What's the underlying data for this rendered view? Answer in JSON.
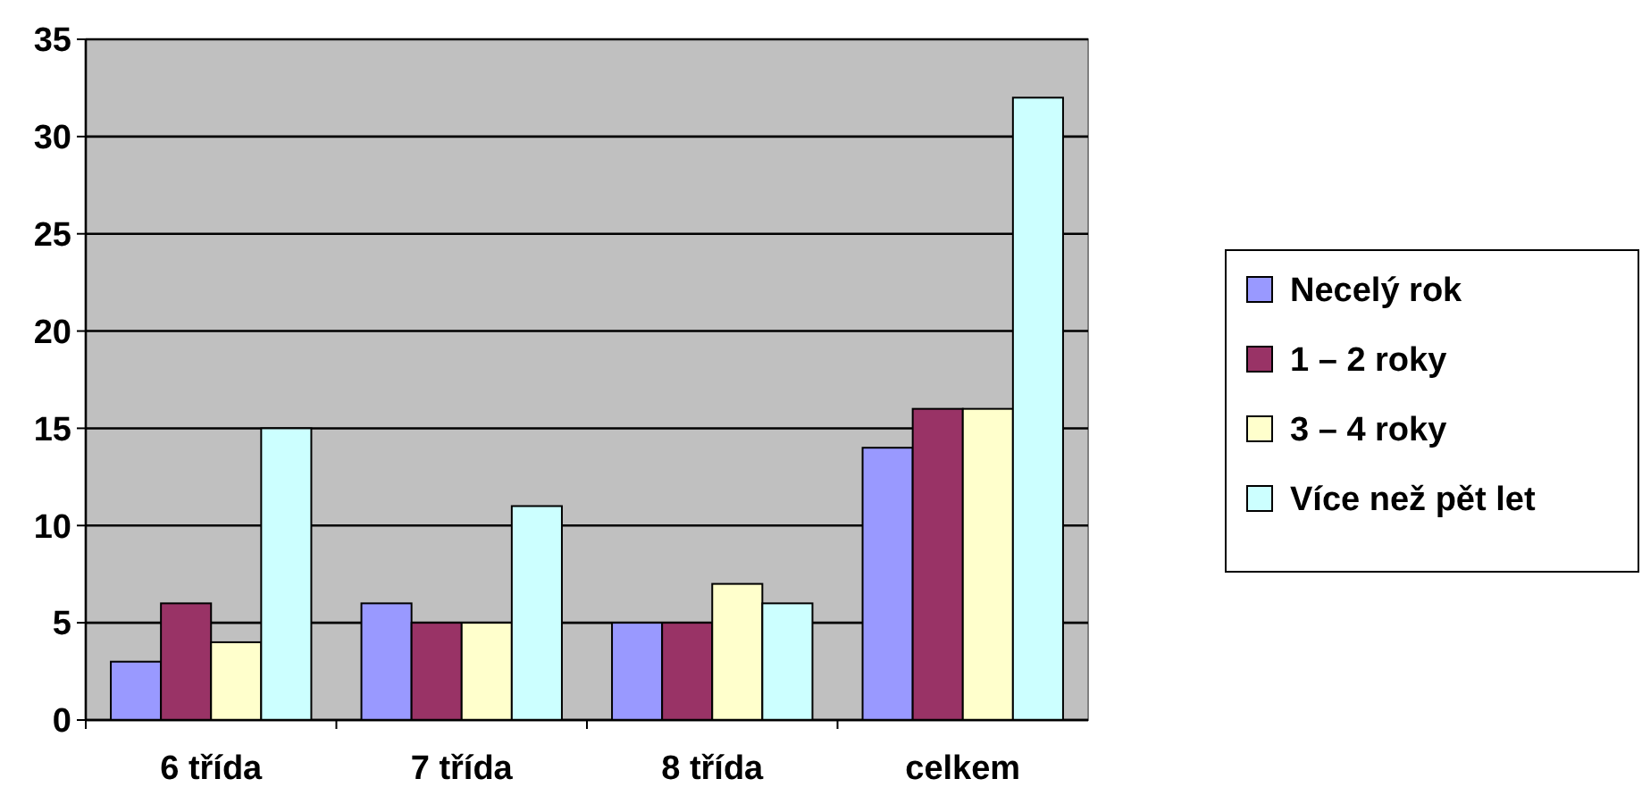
{
  "chart_data": {
    "type": "bar",
    "categories": [
      "6 třída",
      "7 třída",
      "8 třída",
      "celkem"
    ],
    "series": [
      {
        "name": "Necelý rok",
        "color": "#9999ff",
        "values": [
          3,
          6,
          5,
          14
        ]
      },
      {
        "name": "1 – 2 roky",
        "color": "#993366",
        "values": [
          6,
          5,
          5,
          16
        ]
      },
      {
        "name": "3 – 4 roky",
        "color": "#ffffcc",
        "values": [
          4,
          5,
          7,
          16
        ]
      },
      {
        "name": "Více než pět let",
        "color": "#ccffff",
        "values": [
          15,
          11,
          6,
          32
        ]
      }
    ],
    "ylim": [
      0,
      35
    ],
    "yticks": [
      0,
      5,
      10,
      15,
      20,
      25,
      30,
      35
    ],
    "grid": "y",
    "legend": "right"
  }
}
